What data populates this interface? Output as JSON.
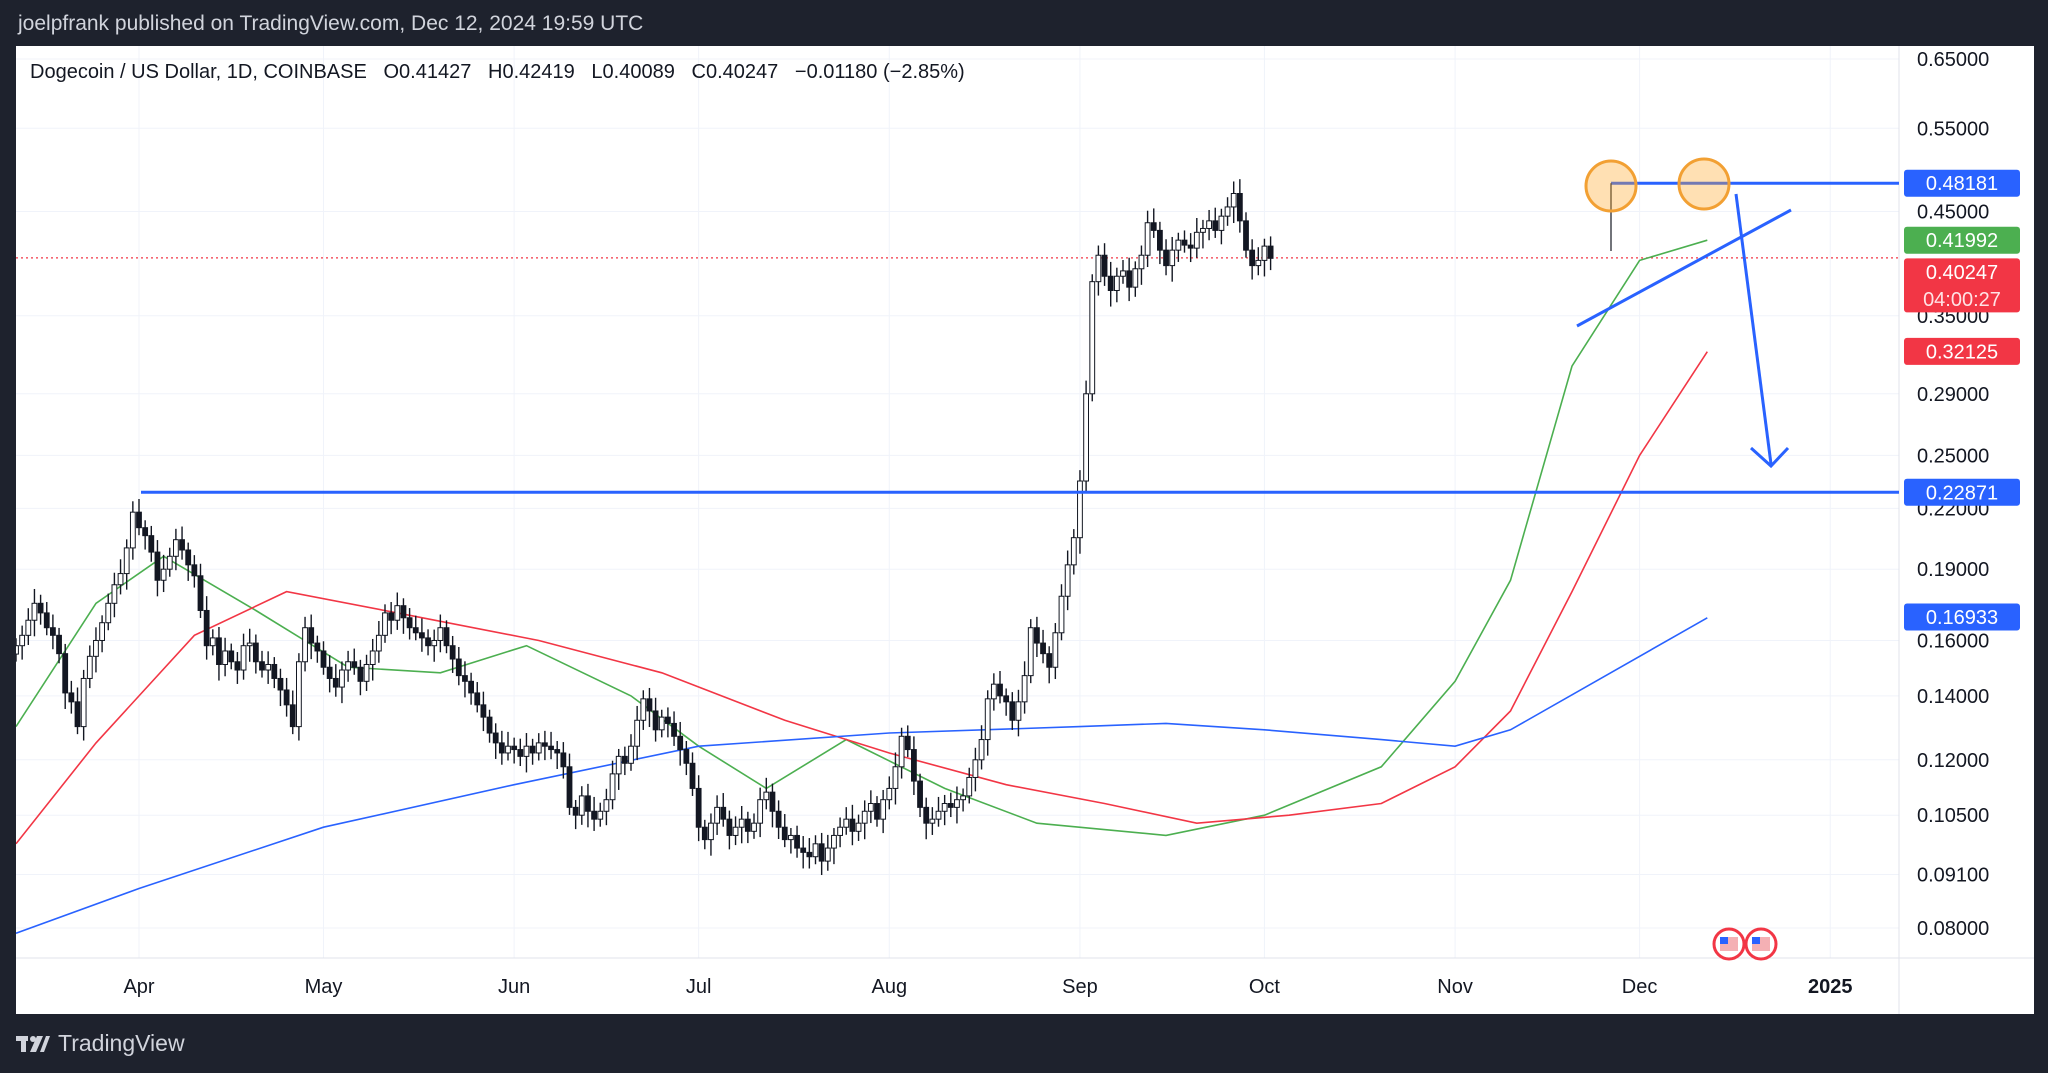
{
  "header": {
    "publisher": "joelpfrank published on TradingView.com, Dec 12, 2024 19:59 UTC"
  },
  "footer": {
    "brand": "TradingView",
    "logo_icon": "tradingview-logo-icon"
  },
  "chart_data": {
    "type": "candlestick",
    "title": "Dogecoin / US Dollar, 1D, COINBASE",
    "ohlc_label": {
      "o": "O0.41427",
      "h": "H0.42419",
      "l": "L0.40089",
      "c": "C0.40247",
      "change": "−0.01180 (−2.85%)"
    },
    "x_ticks": [
      "Apr",
      "May",
      "Jun",
      "Jul",
      "Aug",
      "Sep",
      "Oct",
      "Nov",
      "Dec",
      "2025"
    ],
    "y_ticks": [
      "0.65000",
      "0.55000",
      "0.45000",
      "0.35000",
      "0.29000",
      "0.25000",
      "0.22000",
      "0.19000",
      "0.16000",
      "0.14000",
      "0.12000",
      "0.10500",
      "0.09100",
      "0.08000"
    ],
    "y_scale": "log",
    "price_labels": [
      {
        "text": "0.48181",
        "color": "#2962ff",
        "meaning": "resistance line"
      },
      {
        "text": "0.41992",
        "color": "#4caf50",
        "meaning": "green moving average"
      },
      {
        "text": "0.40247",
        "subtext": "04:00:27",
        "color": "#f23645",
        "meaning": "last price / countdown"
      },
      {
        "text": "0.32125",
        "color": "#f23645",
        "meaning": "red moving average"
      },
      {
        "text": "0.22871",
        "color": "#2962ff",
        "meaning": "support line"
      },
      {
        "text": "0.16933",
        "color": "#2962ff",
        "meaning": "blue moving average"
      }
    ],
    "annotations": {
      "resistance": 0.48181,
      "support": 0.22871,
      "double_top_circles": 2,
      "projection_arrow": "down",
      "last_price_line": 0.40247
    },
    "moving_averages": [
      {
        "color": "#4caf50",
        "points": [
          [
            "Mar 12",
            0.13
          ],
          [
            "Mar 25",
            0.175
          ],
          [
            "Apr 5",
            0.196
          ],
          [
            "Apr 20",
            0.172
          ],
          [
            "May 5",
            0.15
          ],
          [
            "May 20",
            0.148
          ],
          [
            "Jun 3",
            0.158
          ],
          [
            "Jun 20",
            0.14
          ],
          [
            "Jul 1",
            0.124
          ],
          [
            "Jul 12",
            0.112
          ],
          [
            "Jul 25",
            0.126
          ],
          [
            "Aug 10",
            0.112
          ],
          [
            "Aug 25",
            0.103
          ],
          [
            "Sep 15",
            0.1
          ],
          [
            "Oct 1",
            0.105
          ],
          [
            "Oct 20",
            0.118
          ],
          [
            "Nov 1",
            0.145
          ],
          [
            "Nov 10",
            0.185
          ],
          [
            "Nov 20",
            0.31
          ],
          [
            "Dec 1",
            0.4
          ],
          [
            "Dec 12",
            0.42
          ]
        ]
      },
      {
        "color": "#f23645",
        "points": [
          [
            "Mar 12",
            0.098
          ],
          [
            "Mar 25",
            0.125
          ],
          [
            "Apr 10",
            0.162
          ],
          [
            "Apr 25",
            0.18
          ],
          [
            "May 15",
            0.17
          ],
          [
            "Jun 5",
            0.16
          ],
          [
            "Jun 25",
            0.148
          ],
          [
            "Jul 15",
            0.132
          ],
          [
            "Aug 1",
            0.122
          ],
          [
            "Aug 20",
            0.113
          ],
          [
            "Sep 5",
            0.108
          ],
          [
            "Sep 20",
            0.103
          ],
          [
            "Oct 5",
            0.105
          ],
          [
            "Oct 20",
            0.108
          ],
          [
            "Nov 1",
            0.118
          ],
          [
            "Nov 10",
            0.135
          ],
          [
            "Nov 20",
            0.18
          ],
          [
            "Dec 1",
            0.25
          ],
          [
            "Dec 12",
            0.321
          ]
        ]
      },
      {
        "color": "#2962ff",
        "points": [
          [
            "Mar 12",
            0.079
          ],
          [
            "Apr 1",
            0.088
          ],
          [
            "May 1",
            0.102
          ],
          [
            "Jun 1",
            0.113
          ],
          [
            "Jul 1",
            0.124
          ],
          [
            "Aug 1",
            0.128
          ],
          [
            "Sep 1",
            0.13
          ],
          [
            "Sep 15",
            0.131
          ],
          [
            "Oct 1",
            0.129
          ],
          [
            "Oct 20",
            0.126
          ],
          [
            "Nov 1",
            0.124
          ],
          [
            "Nov 10",
            0.129
          ],
          [
            "Dec 12",
            0.169
          ]
        ]
      }
    ],
    "candles_close": [
      0.158,
      0.162,
      0.168,
      0.175,
      0.171,
      0.165,
      0.162,
      0.155,
      0.141,
      0.138,
      0.13,
      0.146,
      0.154,
      0.16,
      0.167,
      0.175,
      0.183,
      0.188,
      0.2,
      0.218,
      0.21,
      0.206,
      0.198,
      0.185,
      0.19,
      0.196,
      0.204,
      0.199,
      0.192,
      0.187,
      0.172,
      0.158,
      0.161,
      0.151,
      0.156,
      0.152,
      0.149,
      0.158,
      0.159,
      0.152,
      0.149,
      0.151,
      0.146,
      0.142,
      0.137,
      0.13,
      0.152,
      0.165,
      0.159,
      0.156,
      0.15,
      0.146,
      0.143,
      0.149,
      0.152,
      0.15,
      0.145,
      0.151,
      0.156,
      0.162,
      0.171,
      0.168,
      0.174,
      0.169,
      0.165,
      0.163,
      0.161,
      0.158,
      0.16,
      0.165,
      0.158,
      0.153,
      0.147,
      0.145,
      0.141,
      0.137,
      0.133,
      0.128,
      0.125,
      0.122,
      0.124,
      0.123,
      0.121,
      0.124,
      0.122,
      0.125,
      0.124,
      0.123,
      0.122,
      0.118,
      0.107,
      0.105,
      0.11,
      0.106,
      0.104,
      0.106,
      0.109,
      0.116,
      0.121,
      0.119,
      0.124,
      0.132,
      0.139,
      0.135,
      0.129,
      0.133,
      0.131,
      0.127,
      0.123,
      0.119,
      0.112,
      0.102,
      0.099,
      0.103,
      0.107,
      0.104,
      0.1,
      0.102,
      0.104,
      0.101,
      0.103,
      0.109,
      0.111,
      0.106,
      0.102,
      0.099,
      0.1,
      0.097,
      0.096,
      0.095,
      0.098,
      0.094,
      0.097,
      0.1,
      0.102,
      0.104,
      0.101,
      0.103,
      0.106,
      0.108,
      0.104,
      0.109,
      0.112,
      0.118,
      0.127,
      0.123,
      0.114,
      0.107,
      0.103,
      0.104,
      0.106,
      0.108,
      0.107,
      0.109,
      0.11,
      0.115,
      0.12,
      0.126,
      0.139,
      0.144,
      0.14,
      0.138,
      0.132,
      0.138,
      0.147,
      0.165,
      0.159,
      0.155,
      0.15,
      0.163,
      0.178,
      0.192,
      0.205,
      0.235,
      0.29,
      0.38,
      0.405,
      0.385,
      0.372,
      0.385,
      0.39,
      0.375,
      0.392,
      0.405,
      0.438,
      0.43,
      0.41,
      0.395,
      0.41,
      0.42,
      0.415,
      0.412,
      0.428,
      0.432,
      0.44,
      0.43,
      0.445,
      0.455,
      0.47,
      0.44,
      0.41,
      0.395,
      0.4,
      0.414,
      0.402
    ]
  }
}
